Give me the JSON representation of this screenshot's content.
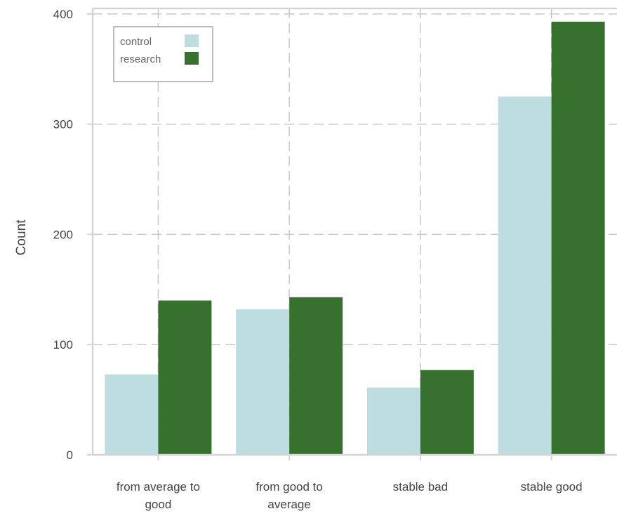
{
  "chart_data": {
    "type": "bar",
    "title": "",
    "xlabel": "",
    "ylabel": "Count",
    "categories": [
      [
        "from average to",
        "good"
      ],
      [
        "from good to",
        "average"
      ],
      [
        "stable bad"
      ],
      [
        "stable good"
      ]
    ],
    "series": [
      {
        "name": "control",
        "color": "#bddde0",
        "values": [
          73,
          132,
          61,
          325
        ]
      },
      {
        "name": "research",
        "color": "#37712e",
        "values": [
          140,
          143,
          77,
          393
        ]
      }
    ],
    "ylim": [
      0,
      405
    ],
    "yticks": [
      0,
      100,
      200,
      300,
      400
    ],
    "grid": true,
    "legend_position": "top-left"
  }
}
